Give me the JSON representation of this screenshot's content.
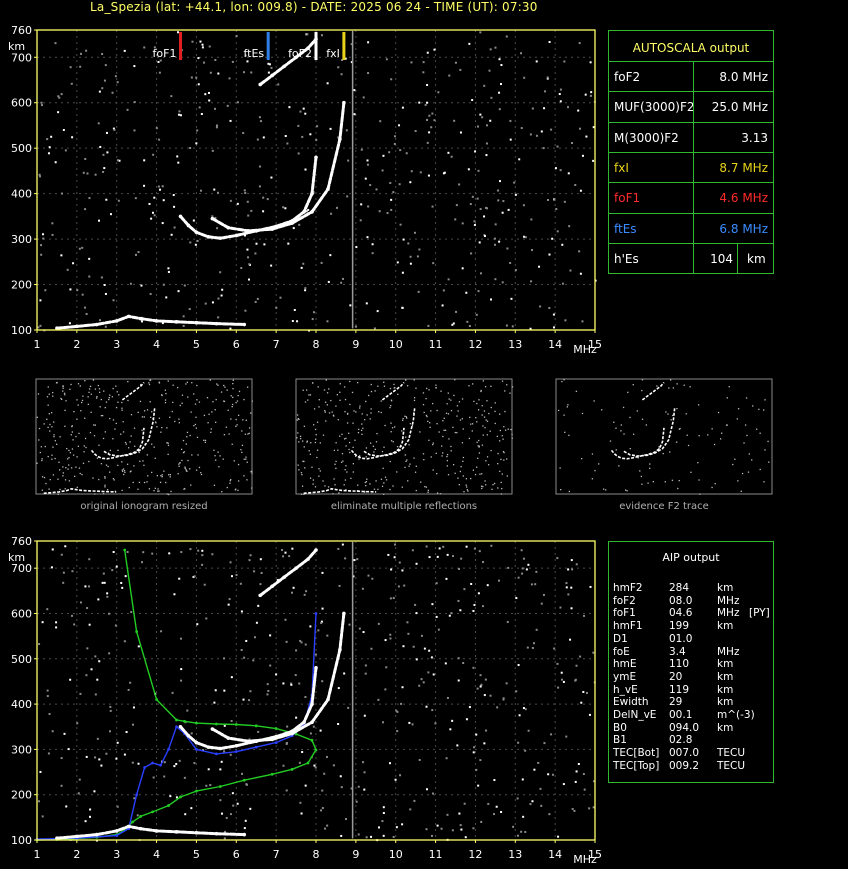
{
  "header": {
    "title": "La_Spezia (lat: +44.1, lon: 009.8) - DATE: 2025 06 24 - TIME (UT): 07:30"
  },
  "chart_data": [
    {
      "type": "scatter",
      "panel": "main",
      "title": "",
      "xlabel": "MHz",
      "ylabel": "km",
      "xlim": [
        1,
        15
      ],
      "ylim": [
        100,
        760
      ],
      "x_ticks": [
        "1",
        "2",
        "3",
        "4",
        "5",
        "6",
        "7",
        "8",
        "9",
        "10",
        "11",
        "12",
        "13",
        "14",
        "15"
      ],
      "y_ticks": [
        "100",
        "200",
        "300",
        "400",
        "500",
        "600",
        "700",
        "760"
      ],
      "markers": [
        {
          "label": "foF1",
          "x": 4.6,
          "color": "#e02020"
        },
        {
          "label": "ftEs",
          "x": 6.8,
          "color": "#2f7fe8"
        },
        {
          "label": "foF2",
          "x": 8.0,
          "color": "#ffffff"
        },
        {
          "label": "fxI",
          "x": 8.7,
          "color": "#e8d21a"
        }
      ],
      "series": [
        {
          "role": "F2 trace",
          "color": "#ffffff",
          "x": [
            4.6,
            4.8,
            5.0,
            5.3,
            5.6,
            6.0,
            6.5,
            7.0,
            7.4,
            7.7,
            7.9,
            8.0
          ],
          "y": [
            350,
            330,
            315,
            305,
            302,
            308,
            318,
            328,
            340,
            360,
            400,
            480
          ]
        },
        {
          "role": "F2 extraordinary trace",
          "color": "#ffffff",
          "x": [
            5.4,
            5.8,
            6.3,
            6.9,
            7.4,
            7.9,
            8.3,
            8.6,
            8.7
          ],
          "y": [
            345,
            325,
            318,
            322,
            335,
            360,
            410,
            520,
            600
          ]
        },
        {
          "role": "E / Es layer",
          "color": "#ffffff",
          "x": [
            1.5,
            2.0,
            2.5,
            3.0,
            3.3,
            3.6,
            4.0,
            4.5,
            5.0,
            5.5,
            6.2
          ],
          "y": [
            104,
            108,
            112,
            120,
            130,
            125,
            120,
            118,
            116,
            114,
            112
          ]
        },
        {
          "role": "upper multiple trace",
          "color": "#ffffff",
          "x": [
            6.6,
            6.9,
            7.2,
            7.5,
            7.8,
            8.0
          ],
          "y": [
            640,
            660,
            680,
            700,
            720,
            740
          ]
        }
      ]
    },
    {
      "type": "line",
      "panel": "aip",
      "title": "",
      "xlabel": "MHz",
      "ylabel": "km",
      "xlim": [
        1,
        15
      ],
      "ylim": [
        100,
        760
      ],
      "x_ticks": [
        "1",
        "2",
        "3",
        "4",
        "5",
        "6",
        "7",
        "8",
        "9",
        "10",
        "11",
        "12",
        "13",
        "14",
        "15"
      ],
      "y_ticks": [
        "100",
        "200",
        "300",
        "400",
        "500",
        "600",
        "700",
        "760"
      ],
      "series": [
        {
          "role": "green model profile",
          "color": "#22cc22",
          "x": [
            1.0,
            1.5,
            2.0,
            2.5,
            3.0,
            3.2,
            3.4,
            3.6,
            3.9,
            4.3,
            4.6,
            5.0,
            5.6,
            6.2,
            6.9,
            7.4,
            7.8,
            8.0,
            7.9,
            7.5,
            7.0,
            6.5,
            6.0,
            5.5,
            5.0,
            4.7,
            4.5,
            4.0,
            3.5,
            3.2
          ],
          "y": [
            100,
            101,
            103,
            106,
            112,
            122,
            140,
            152,
            162,
            176,
            195,
            208,
            218,
            232,
            245,
            256,
            270,
            299,
            320,
            334,
            346,
            352,
            355,
            356,
            358,
            362,
            365,
            410,
            560,
            740
          ]
        },
        {
          "role": "blue fitted trace",
          "color": "#2a3fff",
          "x": [
            1.0,
            2.0,
            3.0,
            3.3,
            3.5,
            3.7,
            3.9,
            4.1,
            4.3,
            4.5,
            4.7,
            5.0,
            5.5,
            6.0,
            6.5,
            7.0,
            7.4,
            7.7,
            7.9,
            8.0
          ],
          "y": [
            102,
            104,
            110,
            125,
            200,
            260,
            270,
            265,
            300,
            350,
            335,
            300,
            290,
            295,
            305,
            315,
            330,
            355,
            420,
            600
          ]
        },
        {
          "role": "F2 trace",
          "color": "#ffffff",
          "x": [
            4.6,
            4.8,
            5.0,
            5.3,
            5.6,
            6.0,
            6.5,
            7.0,
            7.4,
            7.7,
            7.9,
            8.0
          ],
          "y": [
            350,
            330,
            315,
            305,
            302,
            308,
            318,
            328,
            340,
            360,
            400,
            480
          ]
        },
        {
          "role": "F2 extraordinary trace",
          "color": "#ffffff",
          "x": [
            5.4,
            5.8,
            6.3,
            6.9,
            7.4,
            7.9,
            8.3,
            8.6,
            8.7
          ],
          "y": [
            345,
            325,
            318,
            322,
            335,
            360,
            410,
            520,
            600
          ]
        },
        {
          "role": "E / Es layer",
          "color": "#ffffff",
          "x": [
            1.5,
            2.0,
            2.5,
            3.0,
            3.3,
            3.6,
            4.0,
            4.5,
            5.0,
            5.5,
            6.2
          ],
          "y": [
            104,
            108,
            112,
            120,
            130,
            125,
            120,
            118,
            116,
            114,
            112
          ]
        },
        {
          "role": "upper multiple trace",
          "color": "#ffffff",
          "x": [
            6.6,
            6.9,
            7.2,
            7.5,
            7.8,
            8.0
          ],
          "y": [
            640,
            660,
            680,
            700,
            720,
            740
          ]
        }
      ]
    }
  ],
  "autoscala": {
    "title": "AUTOSCALA output",
    "rows": [
      {
        "key": "foF2",
        "value": "8.0 MHz",
        "key_color": "#ffffff",
        "value_color": "#ffffff"
      },
      {
        "key": "MUF(3000)F2",
        "value": "25.0 MHz",
        "key_color": "#ffffff",
        "value_color": "#ffffff"
      },
      {
        "key": "M(3000)F2",
        "value": "3.13",
        "key_color": "#ffffff",
        "value_color": "#ffffff"
      },
      {
        "key": "fxI",
        "value": "8.7 MHz",
        "key_color": "#e8d21a",
        "value_color": "#e8d21a"
      },
      {
        "key": "foF1",
        "value": "4.6 MHz",
        "key_color": "#ff2a2a",
        "value_color": "#ff2a2a"
      },
      {
        "key": "ftEs",
        "value": "6.8 MHz",
        "key_color": "#3a8cff",
        "value_color": "#3a8cff"
      },
      {
        "key": "h'Es",
        "value": "104",
        "unit": "km",
        "key_color": "#ffffff",
        "value_color": "#ffffff"
      }
    ]
  },
  "aip": {
    "title": "AIP output",
    "rows": [
      {
        "name": "hmF2",
        "value": "284",
        "unit": "km",
        "extra": ""
      },
      {
        "name": "foF2",
        "value": "08.0",
        "unit": "MHz",
        "extra": ""
      },
      {
        "name": "foF1",
        "value": "04.6",
        "unit": "MHz",
        "extra": "[PY]"
      },
      {
        "name": "hmF1",
        "value": "199",
        "unit": "km",
        "extra": ""
      },
      {
        "name": "D1",
        "value": "01.0",
        "unit": "",
        "extra": ""
      },
      {
        "name": "foE",
        "value": "3.4",
        "unit": "MHz",
        "extra": ""
      },
      {
        "name": "hmE",
        "value": "110",
        "unit": "km",
        "extra": ""
      },
      {
        "name": "ymE",
        "value": "20",
        "unit": "km",
        "extra": ""
      },
      {
        "name": "h_vE",
        "value": "119",
        "unit": "km",
        "extra": ""
      },
      {
        "name": "Ewidth",
        "value": "29",
        "unit": "km",
        "extra": ""
      },
      {
        "name": "DelN_vE",
        "value": "00.1",
        "unit": "m^(-3)",
        "extra": ""
      },
      {
        "name": "B0",
        "value": "094.0",
        "unit": "km",
        "extra": ""
      },
      {
        "name": "B1",
        "value": "02.8",
        "unit": "",
        "extra": ""
      },
      {
        "name": "TEC[Bot]",
        "value": "007.0",
        "unit": "TECU",
        "extra": ""
      },
      {
        "name": "TEC[Top]",
        "value": "009.2",
        "unit": "TECU",
        "extra": ""
      }
    ]
  },
  "thumbnails": [
    {
      "caption": "original ionogram resized"
    },
    {
      "caption": "eliminate multiple reflections"
    },
    {
      "caption": "evidence F2 trace"
    }
  ]
}
